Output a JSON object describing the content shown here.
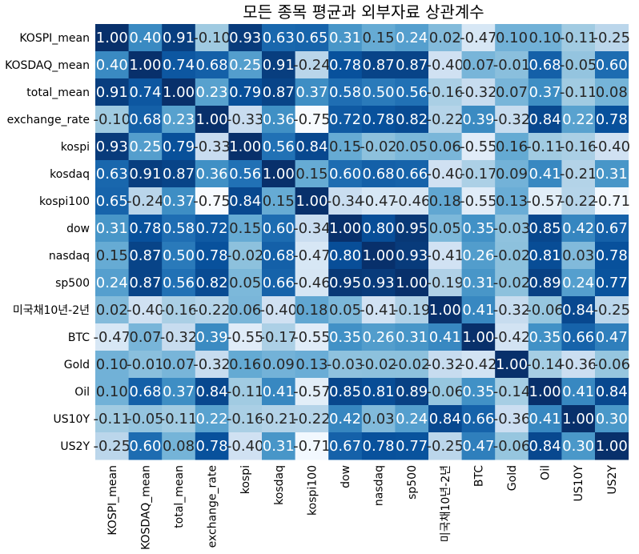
{
  "chart_data": {
    "type": "heatmap",
    "title": "모든 종목 평균과 외부자료 상관계수",
    "labels": [
      "KOSPI_mean",
      "KOSDAQ_mean",
      "total_mean",
      "exchange_rate",
      "kospi",
      "kosdaq",
      "kospi100",
      "dow",
      "nasdaq",
      "sp500",
      "미국채10년-2년",
      "BTC",
      "Gold",
      "Oil",
      "US10Y",
      "US2Y"
    ],
    "values": [
      [
        1.0,
        0.4,
        0.91,
        -0.1,
        0.93,
        0.63,
        0.65,
        0.31,
        0.15,
        0.24,
        0.02,
        -0.47,
        0.1,
        0.1,
        -0.11,
        -0.25
      ],
      [
        0.4,
        1.0,
        0.74,
        0.68,
        0.25,
        0.91,
        -0.24,
        0.78,
        0.87,
        0.87,
        -0.4,
        0.07,
        -0.01,
        0.68,
        -0.05,
        0.6
      ],
      [
        0.91,
        0.74,
        1.0,
        0.23,
        0.79,
        0.87,
        0.37,
        0.58,
        0.5,
        0.56,
        -0.16,
        -0.32,
        0.07,
        0.37,
        -0.11,
        0.08
      ],
      [
        -0.1,
        0.68,
        0.23,
        1.0,
        -0.33,
        0.36,
        -0.75,
        0.72,
        0.78,
        0.82,
        -0.22,
        0.39,
        -0.32,
        0.84,
        0.22,
        0.78
      ],
      [
        0.93,
        0.25,
        0.79,
        -0.33,
        1.0,
        0.56,
        0.84,
        0.15,
        -0.02,
        0.05,
        0.06,
        -0.55,
        0.16,
        -0.11,
        -0.16,
        -0.4
      ],
      [
        0.63,
        0.91,
        0.87,
        0.36,
        0.56,
        1.0,
        0.15,
        0.6,
        0.68,
        0.66,
        -0.4,
        -0.17,
        0.09,
        0.41,
        -0.21,
        0.31
      ],
      [
        0.65,
        -0.24,
        0.37,
        -0.75,
        0.84,
        0.15,
        1.0,
        -0.34,
        -0.47,
        -0.46,
        0.18,
        -0.55,
        0.13,
        -0.57,
        -0.22,
        -0.71
      ],
      [
        0.31,
        0.78,
        0.58,
        0.72,
        0.15,
        0.6,
        -0.34,
        1.0,
        0.8,
        0.95,
        0.05,
        0.35,
        -0.03,
        0.85,
        0.42,
        0.67
      ],
      [
        0.15,
        0.87,
        0.5,
        0.78,
        -0.02,
        0.68,
        -0.47,
        0.8,
        1.0,
        0.93,
        -0.41,
        0.26,
        -0.02,
        0.81,
        0.03,
        0.78
      ],
      [
        0.24,
        0.87,
        0.56,
        0.82,
        0.05,
        0.66,
        -0.46,
        0.95,
        0.93,
        1.0,
        -0.19,
        0.31,
        -0.02,
        0.89,
        0.24,
        0.77
      ],
      [
        0.02,
        -0.4,
        -0.16,
        -0.22,
        0.06,
        -0.4,
        0.18,
        0.05,
        -0.41,
        -0.19,
        1.0,
        0.41,
        -0.32,
        -0.06,
        0.84,
        -0.25
      ],
      [
        -0.47,
        0.07,
        -0.32,
        0.39,
        -0.55,
        -0.17,
        -0.55,
        0.35,
        0.26,
        0.31,
        0.41,
        1.0,
        -0.42,
        0.35,
        0.66,
        0.47
      ],
      [
        0.1,
        -0.01,
        0.07,
        -0.32,
        0.16,
        0.09,
        0.13,
        -0.03,
        -0.02,
        -0.02,
        -0.32,
        -0.42,
        1.0,
        -0.14,
        -0.36,
        -0.06
      ],
      [
        0.1,
        0.68,
        0.37,
        0.84,
        -0.11,
        0.41,
        -0.57,
        0.85,
        0.81,
        0.89,
        -0.06,
        0.35,
        -0.14,
        1.0,
        0.41,
        0.84
      ],
      [
        -0.11,
        -0.05,
        -0.11,
        0.22,
        -0.16,
        -0.21,
        -0.22,
        0.42,
        0.03,
        0.24,
        0.84,
        0.66,
        -0.36,
        0.41,
        1.0,
        0.3
      ],
      [
        -0.25,
        0.6,
        0.08,
        0.78,
        -0.4,
        0.31,
        -0.71,
        0.67,
        0.78,
        0.77,
        -0.25,
        0.47,
        -0.06,
        0.84,
        0.3,
        1.0
      ]
    ],
    "value_range": [
      -0.75,
      1.0
    ],
    "colormap": "Blues",
    "colorbar": false,
    "annotated": true,
    "value_format": "2 decimals"
  }
}
